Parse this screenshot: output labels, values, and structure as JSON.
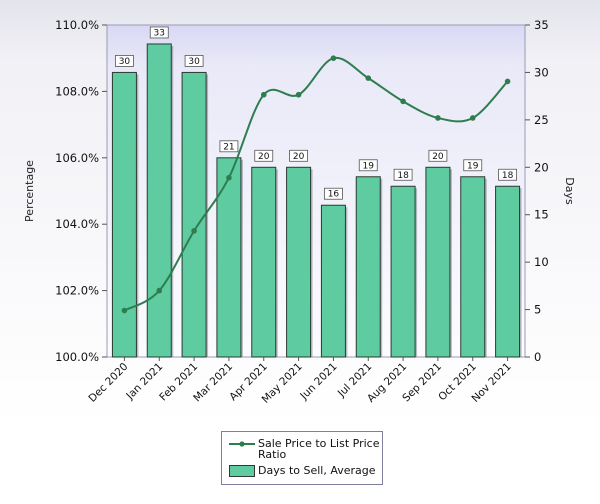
{
  "chart_data": {
    "type": "bar",
    "categories": [
      "Dec 2020",
      "Jan 2021",
      "Feb 2021",
      "Mar 2021",
      "Apr 2021",
      "May 2021",
      "Jun 2021",
      "Jul 2021",
      "Aug 2021",
      "Sep 2021",
      "Oct 2021",
      "Nov 2021"
    ],
    "series": [
      {
        "name": "Days to Sell, Average",
        "type": "bar",
        "axis": "right",
        "values": [
          30,
          33,
          30,
          21,
          20,
          20,
          16,
          19,
          18,
          20,
          19,
          18
        ],
        "labels": [
          "30",
          "33",
          "30",
          "21",
          "20",
          "20",
          "16",
          "19",
          "18",
          "20",
          "19",
          "18"
        ],
        "color": "#5ecba1"
      },
      {
        "name": "Sale Price to List Price Ratio",
        "type": "line",
        "axis": "left",
        "values": [
          101.4,
          102.0,
          103.8,
          105.4,
          107.9,
          107.9,
          109.0,
          108.4,
          107.7,
          107.2,
          107.2,
          108.3
        ],
        "color": "#2e7d4f"
      }
    ],
    "ylabel_left": "Percentage",
    "ylabel_right": "Days",
    "ylim_left": [
      100,
      110
    ],
    "ylim_right": [
      0,
      35
    ],
    "yticks_left": [
      "100.0%",
      "102.0%",
      "104.0%",
      "106.0%",
      "108.0%",
      "110.0%"
    ],
    "yticks_right": [
      "0",
      "5",
      "10",
      "15",
      "20",
      "25",
      "30",
      "35"
    ],
    "grid": false,
    "legend_position": "bottom-center",
    "legend": [
      {
        "label": "Sale Price to List Price Ratio",
        "kind": "line",
        "color": "#2e7d4f"
      },
      {
        "label": "Days to Sell, Average",
        "kind": "bar",
        "color": "#5ecba1"
      }
    ]
  }
}
